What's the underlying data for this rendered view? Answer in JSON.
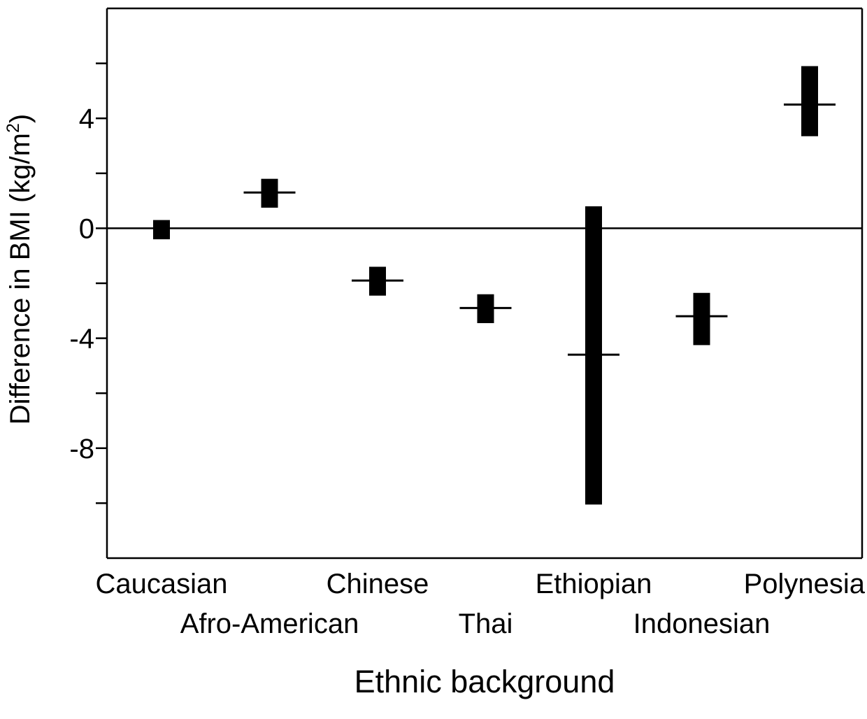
{
  "chart_data": {
    "type": "range-bar",
    "title": "",
    "xlabel": "Ethnic background",
    "ylabel_main": "Difference in BMI (kg/m",
    "ylabel_sup": "2",
    "ylabel_tail": ")",
    "ylim": [
      -12,
      8
    ],
    "y_major_ticks": [
      -8,
      -4,
      0,
      4
    ],
    "y_major_labels": [
      "-8",
      "-4",
      "0",
      "4"
    ],
    "y_minor_ticks": [
      -10,
      -6,
      -2,
      2,
      6
    ],
    "reference_line": 0,
    "grid": false,
    "legend": "none",
    "categories": [
      "Caucasian",
      "Afro-American",
      "Chinese",
      "Thai",
      "Ethiopian",
      "Indonesian",
      "Polynesia"
    ],
    "category_label_row": [
      0,
      1,
      0,
      1,
      0,
      1,
      0
    ],
    "values": [
      0,
      1.3,
      -1.9,
      -2.9,
      -4.6,
      -3.2,
      4.5
    ],
    "ranges": [
      [
        -0.4,
        0.3
      ],
      [
        0.75,
        1.8
      ],
      [
        -2.45,
        -1.4
      ],
      [
        -3.45,
        -2.4
      ],
      [
        -10.05,
        0.8
      ],
      [
        -4.25,
        -2.35
      ],
      [
        3.35,
        5.9
      ]
    ],
    "colors": {
      "bar": "#000000",
      "axis": "#000000",
      "background": "#ffffff"
    }
  }
}
